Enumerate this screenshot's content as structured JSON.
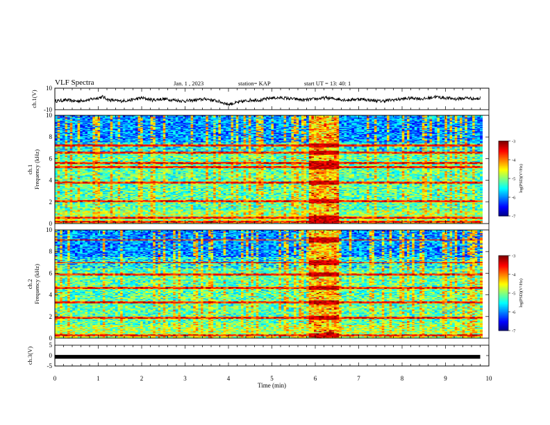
{
  "header": {
    "title": "VLF Spectra",
    "date": "Jan.  1  , 2023",
    "station": "station= KAP",
    "start": "start  UT  =   13: 40: 1"
  },
  "chart_data": [
    {
      "type": "line",
      "title": "",
      "ylabel": "ch.1(V)",
      "ylim": [
        -10,
        10
      ],
      "yticks": [
        "10",
        "-10"
      ],
      "xlim": [
        0,
        10
      ],
      "x": [
        0,
        0.25,
        0.5,
        0.75,
        1,
        1.1,
        1.25,
        1.5,
        1.75,
        2,
        2.25,
        2.5,
        2.75,
        3,
        3.25,
        3.5,
        3.75,
        4,
        4.25,
        4.5,
        4.75,
        5,
        5.25,
        5.5,
        5.75,
        6,
        6.25,
        6.5,
        6.75,
        7,
        7.25,
        7.5,
        7.75,
        8,
        8.25,
        8.5,
        8.75,
        9,
        9.25,
        9.5,
        9.75,
        9.8
      ],
      "y": [
        -2,
        -1,
        -2,
        -1,
        1,
        2,
        -1,
        -2,
        -1,
        1,
        -1,
        0,
        -1,
        -2,
        -1,
        0,
        -2,
        -5,
        -3,
        -1,
        -1,
        1,
        1,
        0,
        -1,
        0,
        1,
        0,
        -1,
        0,
        -1,
        -2,
        -1,
        0,
        1,
        0,
        2,
        1,
        0,
        1,
        0,
        1
      ]
    },
    {
      "type": "heatmap",
      "title": "",
      "ylabel": "ch.1\nFrequency  (kHz)",
      "xlim": [
        0,
        10
      ],
      "ylim": [
        0,
        10
      ],
      "yticks": [
        "0",
        "2",
        "4",
        "6",
        "8",
        "10"
      ],
      "colorbar": {
        "label": "log(PSD)(V²/Hz)",
        "range": [
          -7,
          -3
        ],
        "ticks": [
          "-3",
          "-4",
          "-5",
          "-6",
          "-7"
        ]
      },
      "strong_bands_khz": [
        0.2,
        0.6,
        2.1,
        3.8,
        5.2,
        5.6,
        6.6,
        7.2
      ],
      "bright_segment_min": [
        5.85,
        6.5
      ]
    },
    {
      "type": "heatmap",
      "title": "",
      "ylabel": "ch.2\nFrequency  (kHz)",
      "xlim": [
        0,
        10
      ],
      "ylim": [
        0,
        10
      ],
      "yticks": [
        "0",
        "2",
        "4",
        "6",
        "8",
        "10"
      ],
      "colorbar": {
        "label": "log(PSD)(V²/Hz)",
        "range": [
          -7,
          -3
        ],
        "ticks": [
          "-3",
          "-4",
          "-5",
          "-6",
          "-7"
        ]
      },
      "strong_bands_khz": [
        0.3,
        1.9,
        3.3,
        4.7,
        5.9,
        7.0,
        9.1
      ],
      "bright_segment_min": [
        5.85,
        6.5
      ]
    },
    {
      "type": "line",
      "title": "",
      "ylabel": "ch.3(V)",
      "ylim": [
        -5,
        5
      ],
      "yticks": [
        "5",
        "0",
        "-5"
      ],
      "xlim": [
        0,
        10
      ],
      "x": [
        0,
        9.8
      ],
      "y": [
        -0.6,
        -0.6
      ]
    }
  ],
  "xaxis": {
    "label": "Time  (min)",
    "ticks": [
      "0",
      "1",
      "2",
      "3",
      "4",
      "5",
      "6",
      "7",
      "8",
      "9",
      "10"
    ]
  }
}
